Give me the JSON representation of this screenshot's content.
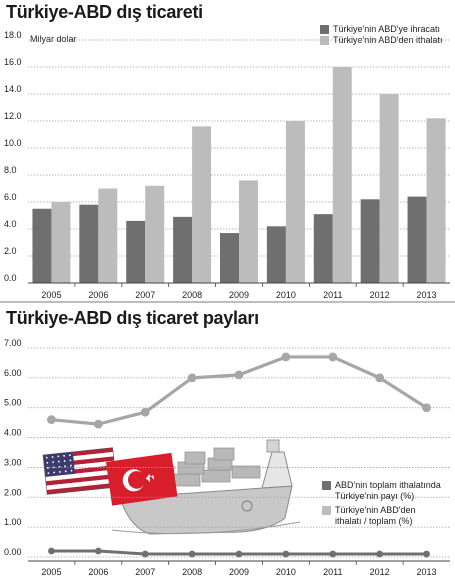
{
  "colors": {
    "dark": "#6f6f6f",
    "light": "#bcbcbc",
    "line": "#a6a6a6",
    "grid": "#a0a0a0"
  },
  "chart_data": [
    {
      "type": "bar",
      "title": "Türkiye-ABD dış ticareti",
      "ylabel": "Milyar dolar",
      "categories": [
        "2005",
        "2006",
        "2007",
        "2008",
        "2009",
        "2010",
        "2011",
        "2012",
        "2013"
      ],
      "series": [
        {
          "name": "Türkiye'nin ABD'ye ihracatı",
          "values": [
            5.5,
            5.8,
            4.6,
            4.9,
            3.7,
            4.2,
            5.1,
            6.2,
            6.4
          ]
        },
        {
          "name": "Türkiye'nin ABD'den ithalatı",
          "values": [
            6.0,
            7.0,
            7.2,
            11.6,
            7.6,
            12.0,
            16.0,
            14.0,
            12.2
          ]
        }
      ],
      "ylim": [
        0,
        18
      ],
      "yticks": [
        "18.0",
        "16.0",
        "14.0",
        "12.0",
        "10.0",
        "8.0",
        "6.0",
        "4.0",
        "2.0",
        "0.0"
      ],
      "grid": true,
      "legend_position": "top-right"
    },
    {
      "type": "line",
      "title": "Türkiye-ABD dış ticaret payları",
      "categories": [
        "2005",
        "2006",
        "2007",
        "2008",
        "2009",
        "2010",
        "2011",
        "2012",
        "2013"
      ],
      "series": [
        {
          "name": "ABD'nin toplam ithalatında Türkiye'nin payı (%)",
          "values": [
            0.2,
            0.2,
            0.1,
            0.1,
            0.1,
            0.1,
            0.1,
            0.1,
            0.1
          ]
        },
        {
          "name": "Türkiye'nin ABD'den ithalatı / toplam (%)",
          "values": [
            4.6,
            4.45,
            4.85,
            6.0,
            6.1,
            6.7,
            6.7,
            6.0,
            5.0
          ]
        }
      ],
      "ylim": [
        0,
        7
      ],
      "yticks": [
        "7.00",
        "6.00",
        "5.00",
        "4.00",
        "3.00",
        "2.00",
        "1.00",
        "0.00"
      ],
      "grid": true,
      "legend_position": "bottom-right"
    }
  ],
  "legend1": {
    "item1": "Türkiye'nin ABD'ye ihracatı",
    "item2": "Türkiye'nin ABD'den ithalatı"
  },
  "legend2": {
    "item1_line1": "ABD'nin toplam ithalatında",
    "item1_line2": "Türkiye'nin payı (%)",
    "item2_line1": "Türkiye'nin ABD'den",
    "item2_line2": "ithalatı / toplam (%)"
  },
  "illustration": {
    "flag1": "usa-flag",
    "flag2": "turkey-flag",
    "ship": "cargo-ship"
  }
}
